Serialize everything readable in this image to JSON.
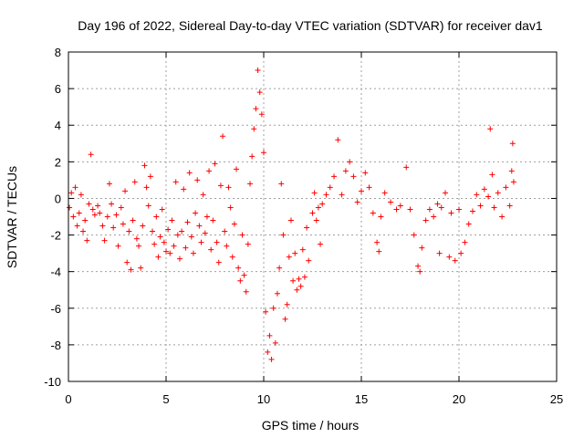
{
  "chart_data": {
    "type": "scatter",
    "title": "Day 196 of 2022, Sidereal Day-to-day VTEC variation (SDTVAR) for receiver dav1",
    "xlabel": "GPS time / hours",
    "ylabel": "SDTVAR / TECUs",
    "xlim": [
      0,
      25
    ],
    "ylim": [
      -10,
      8
    ],
    "xticks": [
      0,
      5,
      10,
      15,
      20,
      25
    ],
    "yticks": [
      -10,
      -8,
      -6,
      -4,
      -2,
      0,
      2,
      4,
      6,
      8
    ],
    "grid": true,
    "marker": "plus",
    "color": "#ff0000",
    "series": [
      {
        "name": "SDTVAR",
        "points": [
          [
            0.05,
            -0.5
          ],
          [
            0.15,
            0.3
          ],
          [
            0.25,
            -1.0
          ],
          [
            0.35,
            0.6
          ],
          [
            0.45,
            -1.5
          ],
          [
            0.55,
            -0.8
          ],
          [
            0.65,
            0.2
          ],
          [
            0.75,
            -1.8
          ],
          [
            0.85,
            -1.2
          ],
          [
            0.95,
            -2.3
          ],
          [
            1.05,
            -0.3
          ],
          [
            1.15,
            2.4
          ],
          [
            1.25,
            -0.6
          ],
          [
            1.35,
            -0.9
          ],
          [
            1.5,
            -0.4
          ],
          [
            1.6,
            -0.8
          ],
          [
            1.75,
            -1.5
          ],
          [
            1.85,
            -2.3
          ],
          [
            2.0,
            -1.0
          ],
          [
            2.1,
            0.8
          ],
          [
            2.2,
            -0.3
          ],
          [
            2.3,
            -1.6
          ],
          [
            2.45,
            -0.9
          ],
          [
            2.55,
            -2.6
          ],
          [
            2.7,
            -0.5
          ],
          [
            2.8,
            -1.4
          ],
          [
            2.9,
            0.4
          ],
          [
            3.0,
            -3.5
          ],
          [
            3.1,
            -1.8
          ],
          [
            3.2,
            -3.9
          ],
          [
            3.3,
            -1.2
          ],
          [
            3.4,
            0.9
          ],
          [
            3.5,
            -2.2
          ],
          [
            3.6,
            -2.6
          ],
          [
            3.7,
            -3.8
          ],
          [
            3.8,
            -1.5
          ],
          [
            3.9,
            1.8
          ],
          [
            4.0,
            0.6
          ],
          [
            4.1,
            -0.4
          ],
          [
            4.2,
            1.2
          ],
          [
            4.3,
            -1.8
          ],
          [
            4.4,
            -2.5
          ],
          [
            4.5,
            -1.0
          ],
          [
            4.6,
            -3.2
          ],
          [
            4.7,
            -2.1
          ],
          [
            4.8,
            -0.6
          ],
          [
            4.9,
            -2.4
          ],
          [
            5.0,
            -2.9
          ],
          [
            5.1,
            -1.7
          ],
          [
            5.2,
            -3.0
          ],
          [
            5.3,
            -1.2
          ],
          [
            5.4,
            -2.6
          ],
          [
            5.5,
            0.9
          ],
          [
            5.6,
            -2.0
          ],
          [
            5.7,
            -3.3
          ],
          [
            5.8,
            -1.8
          ],
          [
            5.9,
            0.5
          ],
          [
            6.0,
            -2.7
          ],
          [
            6.1,
            -1.3
          ],
          [
            6.2,
            1.4
          ],
          [
            6.3,
            -2.1
          ],
          [
            6.4,
            -3.0
          ],
          [
            6.5,
            -0.8
          ],
          [
            6.6,
            1.0
          ],
          [
            6.7,
            -1.5
          ],
          [
            6.8,
            -2.4
          ],
          [
            6.9,
            0.2
          ],
          [
            7.0,
            -1.9
          ],
          [
            7.1,
            -1.0
          ],
          [
            7.2,
            1.5
          ],
          [
            7.3,
            -2.8
          ],
          [
            7.4,
            -1.2
          ],
          [
            7.5,
            1.9
          ],
          [
            7.6,
            -2.4
          ],
          [
            7.7,
            -3.5
          ],
          [
            7.8,
            0.7
          ],
          [
            7.9,
            3.4
          ],
          [
            8.0,
            -1.8
          ],
          [
            8.1,
            -2.6
          ],
          [
            8.2,
            0.6
          ],
          [
            8.3,
            -0.5
          ],
          [
            8.4,
            -3.2
          ],
          [
            8.5,
            -1.4
          ],
          [
            8.6,
            1.6
          ],
          [
            8.7,
            -3.8
          ],
          [
            8.8,
            -4.5
          ],
          [
            8.9,
            -2.0
          ],
          [
            9.0,
            -4.2
          ],
          [
            9.1,
            -5.1
          ],
          [
            9.2,
            -2.5
          ],
          [
            9.3,
            0.8
          ],
          [
            9.4,
            2.3
          ],
          [
            9.5,
            3.8
          ],
          [
            9.6,
            4.9
          ],
          [
            9.7,
            7.0
          ],
          [
            9.8,
            5.8
          ],
          [
            9.9,
            4.6
          ],
          [
            10.0,
            2.5
          ],
          [
            10.1,
            -6.2
          ],
          [
            10.2,
            -8.4
          ],
          [
            10.3,
            -7.5
          ],
          [
            10.4,
            -8.8
          ],
          [
            10.5,
            -6.0
          ],
          [
            10.6,
            -7.9
          ],
          [
            10.7,
            -5.2
          ],
          [
            10.8,
            -3.8
          ],
          [
            10.9,
            0.8
          ],
          [
            11.0,
            -2.0
          ],
          [
            11.1,
            -6.6
          ],
          [
            11.2,
            -5.8
          ],
          [
            11.3,
            -3.2
          ],
          [
            11.4,
            -1.2
          ],
          [
            11.5,
            -4.5
          ],
          [
            11.6,
            -3.0
          ],
          [
            11.7,
            -5.0
          ],
          [
            11.8,
            -4.4
          ],
          [
            11.9,
            -4.8
          ],
          [
            12.0,
            -2.8
          ],
          [
            12.1,
            -4.3
          ],
          [
            12.2,
            -1.6
          ],
          [
            12.3,
            -3.4
          ],
          [
            12.5,
            -0.8
          ],
          [
            12.6,
            0.3
          ],
          [
            12.7,
            -1.2
          ],
          [
            12.8,
            -0.5
          ],
          [
            12.9,
            -2.5
          ],
          [
            13.0,
            -0.3
          ],
          [
            13.2,
            0.2
          ],
          [
            13.4,
            0.6
          ],
          [
            13.6,
            1.2
          ],
          [
            13.8,
            3.2
          ],
          [
            14.0,
            0.2
          ],
          [
            14.2,
            1.5
          ],
          [
            14.4,
            2.0
          ],
          [
            14.6,
            1.2
          ],
          [
            14.8,
            -0.2
          ],
          [
            15.0,
            0.4
          ],
          [
            15.2,
            1.4
          ],
          [
            15.4,
            0.6
          ],
          [
            15.6,
            -0.8
          ],
          [
            15.8,
            -2.4
          ],
          [
            15.9,
            -2.9
          ],
          [
            16.0,
            -1.0
          ],
          [
            16.2,
            0.3
          ],
          [
            16.5,
            -0.2
          ],
          [
            16.8,
            -0.6
          ],
          [
            17.0,
            -0.4
          ],
          [
            17.3,
            1.7
          ],
          [
            17.5,
            -0.6
          ],
          [
            17.7,
            -2.0
          ],
          [
            17.9,
            -3.7
          ],
          [
            18.0,
            -4.0
          ],
          [
            18.1,
            -2.7
          ],
          [
            18.3,
            -1.2
          ],
          [
            18.5,
            -0.6
          ],
          [
            18.7,
            -1.0
          ],
          [
            18.9,
            -0.3
          ],
          [
            19.0,
            -3.0
          ],
          [
            19.1,
            -0.5
          ],
          [
            19.3,
            0.3
          ],
          [
            19.5,
            -3.2
          ],
          [
            19.6,
            -0.8
          ],
          [
            19.8,
            -3.4
          ],
          [
            20.0,
            -0.6
          ],
          [
            20.1,
            -3.0
          ],
          [
            20.3,
            -2.4
          ],
          [
            20.5,
            -1.4
          ],
          [
            20.7,
            -0.7
          ],
          [
            20.9,
            0.2
          ],
          [
            21.1,
            -0.4
          ],
          [
            21.3,
            0.5
          ],
          [
            21.5,
            0.1
          ],
          [
            21.6,
            3.8
          ],
          [
            21.7,
            1.3
          ],
          [
            21.8,
            -0.5
          ],
          [
            22.0,
            0.3
          ],
          [
            22.2,
            -1.0
          ],
          [
            22.4,
            0.6
          ],
          [
            22.6,
            -0.4
          ],
          [
            22.7,
            1.5
          ],
          [
            22.75,
            3.0
          ],
          [
            22.8,
            0.9
          ]
        ]
      }
    ]
  }
}
